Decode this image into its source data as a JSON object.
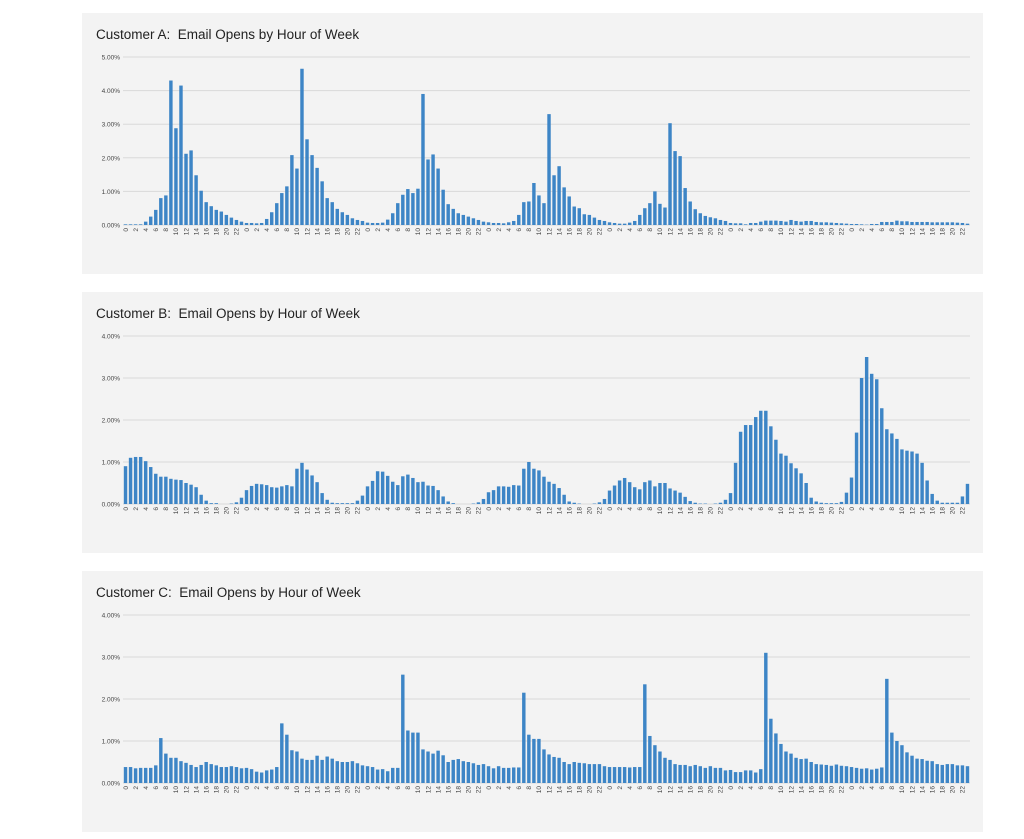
{
  "colors": {
    "bar": "#3d85c6",
    "grid": "#d9d9d9",
    "background": "#f3f3f3"
  },
  "chart_data": [
    {
      "type": "bar",
      "title": "Customer A:  Email Opens by Hour of Week",
      "xlabel": "",
      "ylabel": "",
      "ylim": [
        0,
        5
      ],
      "yticks": [
        "0.00%",
        "1.00%",
        "2.00%",
        "3.00%",
        "4.00%",
        "5.00%"
      ],
      "grid": true,
      "x_tick_labels": "even hours 0-22, repeated for 7 days",
      "values": [
        0.02,
        0.02,
        0.02,
        0.02,
        0.1,
        0.25,
        0.45,
        0.8,
        0.88,
        4.3,
        2.88,
        4.15,
        2.12,
        2.22,
        1.48,
        1.02,
        0.68,
        0.56,
        0.45,
        0.4,
        0.3,
        0.22,
        0.15,
        0.1,
        0.06,
        0.06,
        0.05,
        0.06,
        0.18,
        0.38,
        0.65,
        0.95,
        1.15,
        2.08,
        1.68,
        4.65,
        2.55,
        2.08,
        1.7,
        1.3,
        0.8,
        0.68,
        0.48,
        0.38,
        0.3,
        0.2,
        0.15,
        0.12,
        0.07,
        0.06,
        0.06,
        0.07,
        0.16,
        0.35,
        0.65,
        0.9,
        1.07,
        0.95,
        1.08,
        3.9,
        1.95,
        2.1,
        1.68,
        1.05,
        0.62,
        0.48,
        0.35,
        0.3,
        0.25,
        0.2,
        0.15,
        0.1,
        0.08,
        0.06,
        0.06,
        0.05,
        0.08,
        0.12,
        0.3,
        0.68,
        0.7,
        1.25,
        0.88,
        0.65,
        3.3,
        1.48,
        1.75,
        1.12,
        0.85,
        0.55,
        0.5,
        0.32,
        0.3,
        0.22,
        0.15,
        0.12,
        0.08,
        0.06,
        0.04,
        0.04,
        0.07,
        0.12,
        0.3,
        0.5,
        0.65,
        1.0,
        0.63,
        0.52,
        3.03,
        2.2,
        2.05,
        1.1,
        0.7,
        0.47,
        0.35,
        0.27,
        0.23,
        0.2,
        0.15,
        0.12,
        0.06,
        0.05,
        0.05,
        0.02,
        0.06,
        0.06,
        0.1,
        0.13,
        0.13,
        0.13,
        0.12,
        0.1,
        0.15,
        0.12,
        0.1,
        0.12,
        0.12,
        0.09,
        0.08,
        0.08,
        0.07,
        0.06,
        0.05,
        0.04,
        0.03,
        0.03,
        0.02,
        0.01,
        0.03,
        0.03,
        0.09,
        0.09,
        0.09,
        0.13,
        0.11,
        0.11,
        0.09,
        0.09,
        0.09,
        0.09,
        0.08,
        0.08,
        0.08,
        0.08,
        0.08,
        0.07,
        0.06,
        0.04
      ]
    },
    {
      "type": "bar",
      "title": "Customer B:  Email Opens by Hour of Week",
      "xlabel": "",
      "ylabel": "",
      "ylim": [
        0,
        4
      ],
      "yticks": [
        "0.00%",
        "1.00%",
        "2.00%",
        "3.00%",
        "4.00%"
      ],
      "grid": true,
      "x_tick_labels": "even hours 0-22, repeated for 7 days",
      "values": [
        0.9,
        1.1,
        1.12,
        1.12,
        1.02,
        0.88,
        0.72,
        0.65,
        0.65,
        0.6,
        0.58,
        0.57,
        0.5,
        0.46,
        0.4,
        0.22,
        0.08,
        0.02,
        0.02,
        0,
        0,
        0.01,
        0.04,
        0.15,
        0.33,
        0.43,
        0.48,
        0.47,
        0.45,
        0.4,
        0.39,
        0.42,
        0.45,
        0.42,
        0.84,
        0.98,
        0.82,
        0.68,
        0.52,
        0.26,
        0.1,
        0.03,
        0.02,
        0.02,
        0.02,
        0.02,
        0.08,
        0.2,
        0.42,
        0.55,
        0.78,
        0.77,
        0.67,
        0.53,
        0.45,
        0.66,
        0.7,
        0.62,
        0.52,
        0.53,
        0.44,
        0.43,
        0.33,
        0.18,
        0.06,
        0.02,
        0,
        0,
        0,
        0.01,
        0.04,
        0.12,
        0.28,
        0.33,
        0.42,
        0.42,
        0.41,
        0.45,
        0.44,
        0.84,
        1.0,
        0.84,
        0.8,
        0.65,
        0.53,
        0.48,
        0.38,
        0.22,
        0.06,
        0.03,
        0.01,
        0,
        0,
        0.01,
        0.04,
        0.12,
        0.32,
        0.44,
        0.56,
        0.62,
        0.52,
        0.4,
        0.35,
        0.52,
        0.56,
        0.42,
        0.5,
        0.5,
        0.37,
        0.32,
        0.27,
        0.17,
        0.07,
        0.03,
        0.01,
        0.01,
        0,
        0.01,
        0.03,
        0.1,
        0.26,
        0.98,
        1.72,
        1.88,
        1.88,
        2.07,
        2.22,
        2.22,
        1.85,
        1.53,
        1.2,
        1.15,
        0.97,
        0.85,
        0.73,
        0.5,
        0.15,
        0.06,
        0.03,
        0.02,
        0.02,
        0.02,
        0.05,
        0.27,
        0.63,
        1.7,
        3.0,
        3.5,
        3.1,
        2.97,
        2.28,
        1.78,
        1.68,
        1.55,
        1.3,
        1.27,
        1.25,
        1.2,
        0.98,
        0.56,
        0.24,
        0.08,
        0.03,
        0.03,
        0.03,
        0.03,
        0.18,
        0.48
      ]
    },
    {
      "type": "bar",
      "title": "Customer C:  Email Opens by Hour of Week",
      "xlabel": "",
      "ylabel": "",
      "ylim": [
        0,
        4
      ],
      "yticks": [
        "0.00%",
        "1.00%",
        "2.00%",
        "3.00%",
        "4.00%"
      ],
      "grid": true,
      "x_tick_labels": "even hours 0-22, repeated for 7 days",
      "values": [
        0.38,
        0.38,
        0.35,
        0.36,
        0.36,
        0.36,
        0.42,
        1.07,
        0.7,
        0.6,
        0.6,
        0.52,
        0.48,
        0.43,
        0.38,
        0.43,
        0.5,
        0.45,
        0.42,
        0.38,
        0.38,
        0.4,
        0.38,
        0.35,
        0.36,
        0.33,
        0.27,
        0.25,
        0.3,
        0.32,
        0.38,
        1.42,
        1.15,
        0.78,
        0.75,
        0.58,
        0.55,
        0.55,
        0.65,
        0.55,
        0.63,
        0.58,
        0.52,
        0.5,
        0.5,
        0.52,
        0.47,
        0.42,
        0.4,
        0.38,
        0.32,
        0.33,
        0.28,
        0.36,
        0.36,
        2.58,
        1.25,
        1.2,
        1.2,
        0.8,
        0.75,
        0.7,
        0.77,
        0.66,
        0.5,
        0.55,
        0.57,
        0.52,
        0.5,
        0.47,
        0.43,
        0.45,
        0.4,
        0.35,
        0.4,
        0.36,
        0.36,
        0.37,
        0.37,
        2.15,
        1.15,
        1.05,
        1.05,
        0.8,
        0.68,
        0.62,
        0.6,
        0.5,
        0.45,
        0.5,
        0.48,
        0.47,
        0.45,
        0.45,
        0.45,
        0.4,
        0.38,
        0.38,
        0.38,
        0.38,
        0.37,
        0.38,
        0.38,
        2.35,
        1.12,
        0.9,
        0.75,
        0.6,
        0.55,
        0.45,
        0.43,
        0.43,
        0.4,
        0.43,
        0.4,
        0.36,
        0.4,
        0.36,
        0.36,
        0.3,
        0.31,
        0.26,
        0.26,
        0.3,
        0.3,
        0.25,
        0.33,
        3.1,
        1.53,
        1.18,
        0.93,
        0.75,
        0.7,
        0.6,
        0.57,
        0.58,
        0.5,
        0.45,
        0.44,
        0.43,
        0.41,
        0.44,
        0.41,
        0.4,
        0.38,
        0.36,
        0.34,
        0.35,
        0.32,
        0.34,
        0.37,
        2.48,
        1.2,
        1.0,
        0.9,
        0.73,
        0.65,
        0.58,
        0.57,
        0.53,
        0.52,
        0.45,
        0.43,
        0.45,
        0.45,
        0.42,
        0.42,
        0.4
      ]
    }
  ]
}
